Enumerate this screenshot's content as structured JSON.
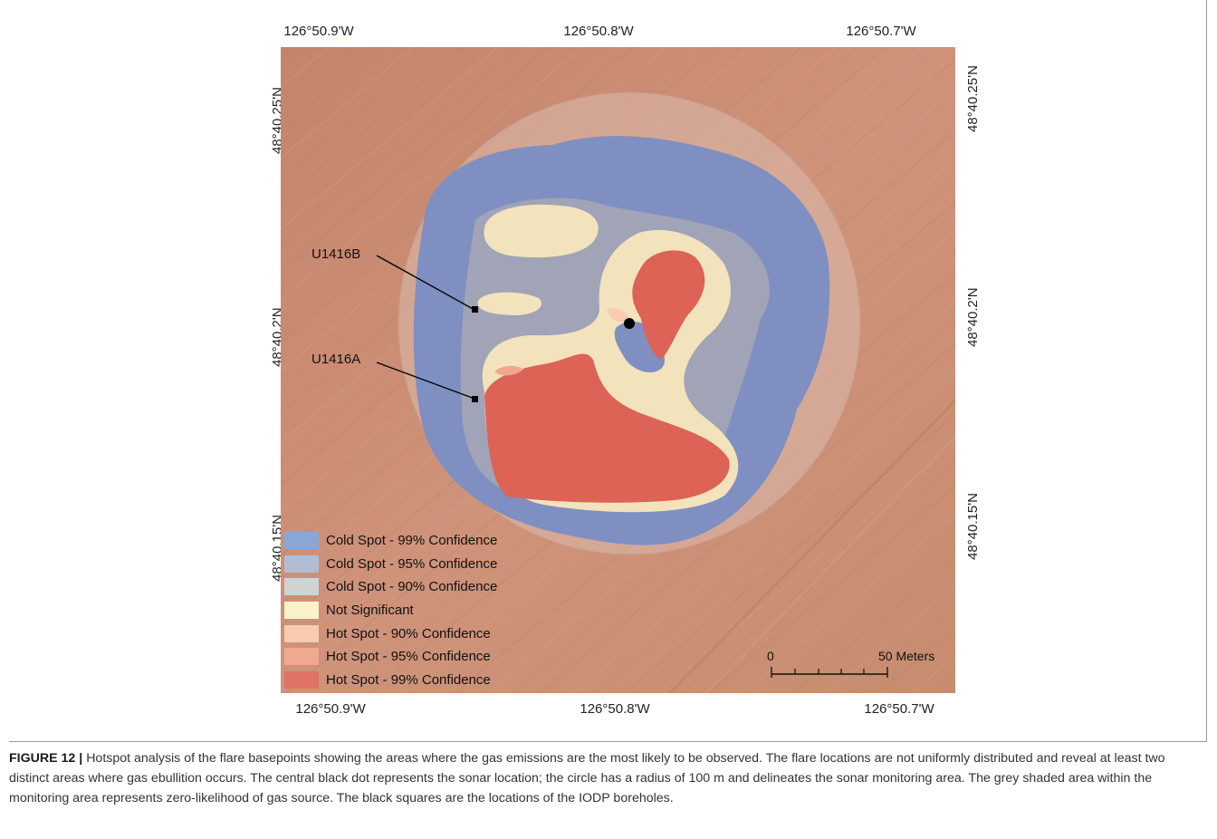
{
  "figure": {
    "number_label": "FIGURE 12 |",
    "caption": "Hotspot analysis of the flare basepoints showing the areas where the gas emissions are the most likely to be observed. The flare locations are not uniformly distributed and reveal at least two distinct areas where gas ebullition occurs. The central black dot represents the sonar location; the circle has a radius of 100 m and delineates the sonar monitoring area. The grey shaded area within the monitoring area represents zero-likelihood of gas source. The black squares are the locations of the IODP boreholes."
  },
  "axes": {
    "top_ticks": [
      "126°50.9'W",
      "126°50.8'W",
      "126°50.7'W"
    ],
    "bottom_ticks": [
      "126°50.9'W",
      "126°50.8'W",
      "126°50.7'W"
    ],
    "left_ticks": [
      "48°40.25'N",
      "48°40.2'N",
      "48°40.15'N"
    ],
    "right_ticks": [
      "48°40.25'N",
      "48°40.2'N",
      "48°40.15'N"
    ]
  },
  "labels": {
    "borehole_b": "U1416B",
    "borehole_a": "U1416A"
  },
  "legend": [
    {
      "label": "Cold Spot - 99% Confidence",
      "color": "#8aa6d6"
    },
    {
      "label": "Cold Spot - 95% Confidence",
      "color": "#b1bdd3"
    },
    {
      "label": "Cold Spot - 90% Confidence",
      "color": "#cfd3d2"
    },
    {
      "label": "Not Significant",
      "color": "#fbf2c9"
    },
    {
      "label": "Hot Spot - 90% Confidence",
      "color": "#f6cbb0"
    },
    {
      "label": "Hot Spot - 95% Confidence",
      "color": "#efa98e"
    },
    {
      "label": "Hot Spot - 99% Confidence",
      "color": "#e07366"
    }
  ],
  "scalebar": {
    "start_label": "0",
    "end_label": "50 Meters"
  },
  "colors": {
    "seafloor": "#c98a6e",
    "hot_99": "#dc6356",
    "not_significant": "#f2e3bd",
    "cold_99": "#7f8fc2",
    "cold_90": "#b3a7a6",
    "monitor_circle": "#d9b8a8"
  }
}
